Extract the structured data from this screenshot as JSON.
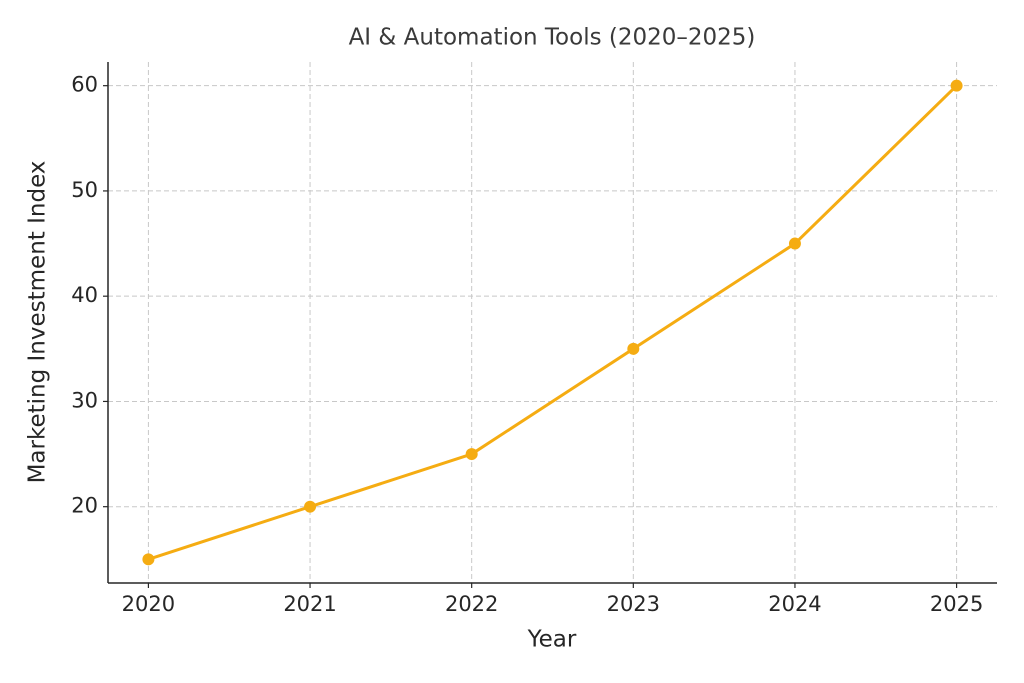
{
  "chart_data": {
    "type": "line",
    "title": "AI & Automation Tools (2020–2025)",
    "x_label": "Year",
    "y_label": "Marketing Investment Index",
    "x": [
      2020,
      2021,
      2022,
      2023,
      2024,
      2025
    ],
    "values": [
      15,
      20,
      25,
      35,
      45,
      60
    ],
    "color": "#f5ac12",
    "xlim": [
      2019.75,
      2025.25
    ],
    "xticks": [
      2020,
      2021,
      2022,
      2023,
      2024,
      2025
    ],
    "ylim": [
      12.75,
      62.25
    ],
    "yticks": [
      20,
      30,
      40,
      50,
      60
    ],
    "grid": true,
    "markers": true
  }
}
